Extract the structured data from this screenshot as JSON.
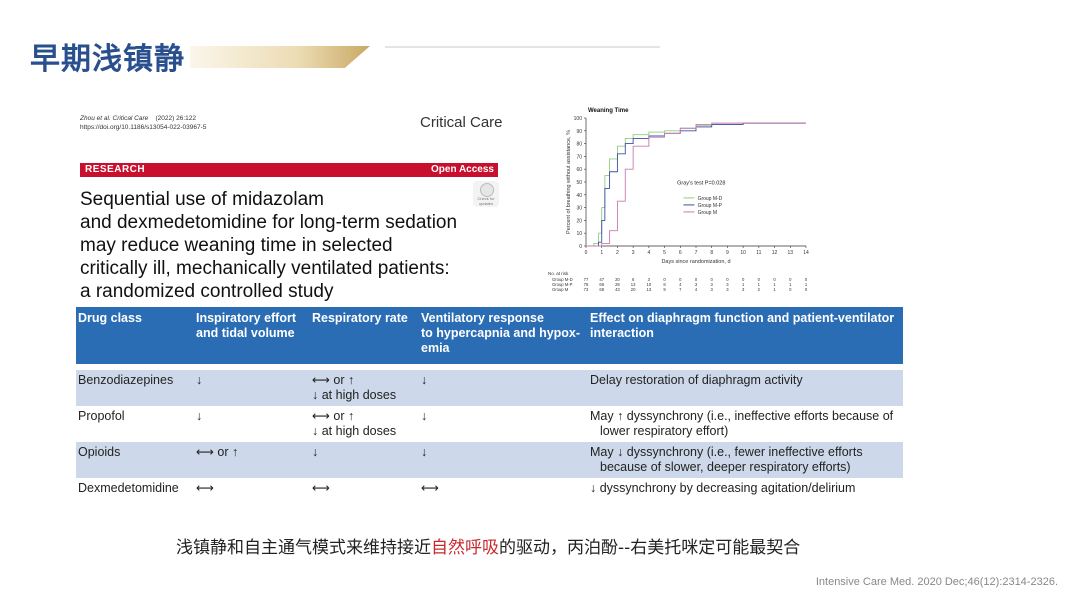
{
  "slide": {
    "title": "早期浅镇静",
    "summary_before": "浅镇静和自主通气模式来维持接近",
    "summary_highlight": "自然呼吸",
    "summary_after": "的驱动，丙泊酚--右美托咪定可能最契合",
    "source": "Intensive Care Med. 2020 Dec;46(12):2314-2326.",
    "accent_color": "#2a4f8f",
    "highlight_color": "#c8282d"
  },
  "paper": {
    "authors": "Zhou et al. Critical Care",
    "year_ref": "(2022) 26:122",
    "doi": "https://doi.org/10.1186/s13054-022-03967-5",
    "journal": "Critical Care",
    "section": "RESEARCH",
    "access": "Open Access",
    "title_lines": [
      "Sequential use of midazolam",
      "and dexmedetomidine for long-term sedation",
      "may reduce weaning time in selected",
      "critically ill, mechanically ventilated patients:",
      "a randomized controlled study"
    ],
    "badge_icon": "check-for-updates-icon",
    "badge_text": "Check for updates",
    "brand_color": "#c8102e"
  },
  "chart_data": {
    "type": "line",
    "title": "Weaning Time",
    "xlabel": "Days since randomization, d",
    "ylabel": "Percent of breathing without assistance, %",
    "xlim": [
      0,
      14
    ],
    "ylim": [
      0,
      100
    ],
    "xticks": [
      "0",
      "1",
      "2",
      "3",
      "4",
      "5",
      "6",
      "7",
      "8",
      "9",
      "10",
      "11",
      "12",
      "13",
      "14"
    ],
    "yticks": [
      "0",
      "10",
      "20",
      "30",
      "40",
      "50",
      "60",
      "70",
      "80",
      "90",
      "100"
    ],
    "annotation": "Gray's test P=0.028",
    "legend_position": "right",
    "series": [
      {
        "name": "Group M-D",
        "color": "#8fcf7a",
        "x": [
          0,
          0.5,
          0.8,
          1.0,
          1.2,
          1.5,
          2.0,
          2.5,
          3.0,
          4.0,
          5.0,
          6.0,
          7.0,
          8.0,
          10.0,
          12.0,
          14.0
        ],
        "y": [
          0,
          2,
          10,
          30,
          55,
          68,
          78,
          84,
          87,
          89,
          90,
          92,
          94,
          95,
          96,
          96,
          96
        ]
      },
      {
        "name": "Group M-P",
        "color": "#3f4fa6",
        "x": [
          0,
          0.8,
          1.0,
          1.2,
          1.5,
          2.0,
          2.5,
          3.0,
          4.0,
          5.0,
          6.0,
          7.0,
          8.0,
          10.0,
          12.0,
          14.0
        ],
        "y": [
          0,
          3,
          20,
          45,
          58,
          72,
          80,
          84,
          86,
          88,
          90,
          93,
          95,
          96,
          96,
          96
        ]
      },
      {
        "name": "Group M",
        "color": "#c77ab0",
        "x": [
          0,
          1.0,
          1.5,
          2.0,
          2.5,
          3.0,
          4.0,
          5.0,
          6.0,
          7.0,
          8.0,
          10.0,
          12.0,
          14.0
        ],
        "y": [
          0,
          2,
          12,
          35,
          60,
          78,
          85,
          88,
          92,
          95,
          96,
          96,
          96,
          96
        ]
      }
    ],
    "at_risk": {
      "label": "No. at risk",
      "rows": [
        {
          "group": "Group M-D",
          "values": [
            "77",
            "47",
            "20",
            "6",
            "3",
            "0",
            "0",
            "0",
            "0",
            "0",
            "0",
            "0",
            "0",
            "0",
            "0"
          ]
        },
        {
          "group": "Group M-P",
          "values": [
            "78",
            "66",
            "28",
            "13",
            "10",
            "8",
            "4",
            "3",
            "3",
            "3",
            "1",
            "1",
            "1",
            "1",
            "1"
          ]
        },
        {
          "group": "Group M",
          "values": [
            "73",
            "68",
            "43",
            "20",
            "13",
            "9",
            "7",
            "4",
            "3",
            "3",
            "3",
            "2",
            "1",
            "0",
            "0"
          ]
        }
      ]
    }
  },
  "table": {
    "header_color": "#2b6db4",
    "stripe_color": "#cdd9ea",
    "headers": [
      [
        "Drug class"
      ],
      [
        "Inspiratory effort",
        "and tidal volume"
      ],
      [
        "Respiratory rate"
      ],
      [
        "Ventilatory response",
        "to hypercapnia and hypox-",
        "emia"
      ],
      [
        "Effect on diaphragm function and patient-ventilator",
        "interaction"
      ]
    ],
    "rows": [
      {
        "drug": "Benzodiazepines",
        "effort": "↓",
        "rate": [
          "⟷ or ↑",
          "↓ at high doses"
        ],
        "response": "↓",
        "effect": [
          "Delay restoration of diaphragm activity"
        ]
      },
      {
        "drug": "Propofol",
        "effort": "↓",
        "rate": [
          "⟷ or ↑",
          "↓ at high doses"
        ],
        "response": "↓",
        "effect": [
          "May ↑ dyssynchrony (i.e., ineffective efforts because of",
          "lower respiratory effort)"
        ]
      },
      {
        "drug": "Opioids",
        "effort": "⟷ or ↑",
        "rate": [
          "↓"
        ],
        "response": "↓",
        "effect": [
          "May ↓ dyssynchrony (i.e., fewer ineffective efforts",
          "because of slower, deeper respiratory efforts)"
        ]
      },
      {
        "drug": "Dexmedetomidine",
        "effort": "⟷",
        "rate": [
          "⟷"
        ],
        "response": "⟷",
        "effect": [
          "↓ dyssynchrony by decreasing agitation/delirium"
        ]
      }
    ]
  }
}
